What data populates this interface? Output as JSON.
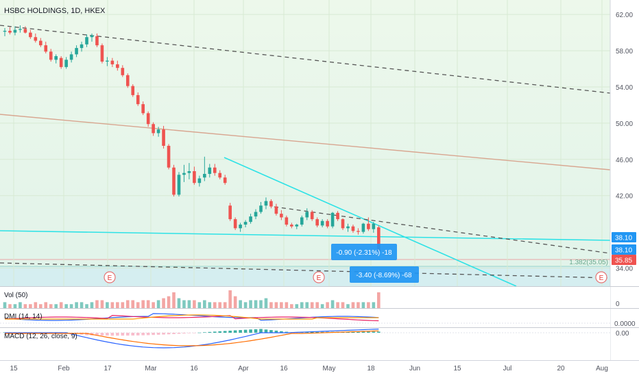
{
  "header": {
    "symbol": "HSBC HOLDINGS",
    "interval": "1D",
    "exchange": "HKEX"
  },
  "chart_data": {
    "type": "candlestick",
    "price_axis": {
      "ticks": [
        "62.00",
        "58.00",
        "54.00",
        "50.00",
        "46.00",
        "42.00",
        "34.00"
      ],
      "ylim": [
        32.0,
        63.6
      ]
    },
    "date_axis": {
      "labels": [
        "15",
        "Feb",
        "17",
        "Mar",
        "16",
        "Apr",
        "16",
        "May",
        "18",
        "Jun",
        "15",
        "Jul",
        "20",
        "Aug"
      ]
    },
    "price_tags": [
      {
        "text": "38.10",
        "value": 38.1,
        "color": "#2196f3"
      },
      {
        "text": "38.10",
        "value": 38.1,
        "color": "#2196f3"
      },
      {
        "text": "35.85",
        "value": 35.85,
        "color": "#ef5350"
      }
    ],
    "fib_label": "1.382(35.05)",
    "measurements": [
      {
        "text": "-0.90 (-2.31%) -18"
      },
      {
        "text": "-3.40 (-8.69%) -68"
      }
    ],
    "earnings_marker": "E",
    "candles": [
      [
        60.1,
        60.5,
        59.6,
        60.2
      ],
      [
        60.2,
        60.6,
        59.8,
        60.0
      ],
      [
        60.0,
        60.7,
        59.7,
        60.3
      ],
      [
        60.3,
        60.8,
        60.0,
        60.4
      ],
      [
        60.4,
        60.7,
        59.9,
        60.0
      ],
      [
        60.0,
        60.3,
        59.3,
        59.5
      ],
      [
        59.5,
        59.9,
        58.9,
        59.1
      ],
      [
        59.1,
        59.4,
        58.4,
        58.6
      ],
      [
        58.6,
        59.0,
        57.7,
        57.9
      ],
      [
        57.9,
        58.2,
        56.8,
        57.0
      ],
      [
        57.0,
        57.6,
        56.6,
        57.4
      ],
      [
        57.2,
        57.4,
        56.0,
        56.2
      ],
      [
        56.2,
        57.3,
        56.0,
        57.0
      ],
      [
        57.0,
        57.9,
        56.7,
        57.6
      ],
      [
        57.6,
        58.6,
        57.3,
        58.3
      ],
      [
        58.3,
        59.0,
        57.9,
        58.7
      ],
      [
        58.7,
        59.8,
        58.4,
        59.5
      ],
      [
        59.5,
        59.9,
        59.0,
        59.7
      ],
      [
        59.6,
        59.9,
        58.4,
        58.6
      ],
      [
        58.6,
        58.8,
        56.6,
        56.8
      ],
      [
        56.8,
        57.3,
        56.3,
        56.9
      ],
      [
        56.9,
        57.2,
        56.2,
        56.5
      ],
      [
        56.5,
        56.9,
        55.8,
        56.1
      ],
      [
        56.1,
        56.4,
        55.1,
        55.3
      ],
      [
        55.3,
        55.5,
        53.9,
        54.1
      ],
      [
        54.1,
        54.3,
        52.9,
        53.1
      ],
      [
        53.1,
        53.4,
        51.9,
        52.1
      ],
      [
        52.1,
        52.4,
        50.9,
        51.1
      ],
      [
        51.1,
        51.3,
        49.6,
        49.9
      ],
      [
        49.9,
        50.1,
        48.6,
        48.9
      ],
      [
        48.9,
        49.6,
        48.5,
        49.3
      ],
      [
        49.3,
        49.7,
        47.2,
        47.5
      ],
      [
        47.5,
        47.7,
        44.9,
        45.1
      ],
      [
        45.1,
        45.4,
        41.9,
        42.1
      ],
      [
        42.1,
        44.6,
        41.9,
        44.3
      ],
      [
        44.3,
        45.4,
        43.5,
        44.5
      ],
      [
        44.5,
        45.6,
        43.8,
        44.7
      ],
      [
        44.7,
        45.2,
        43.2,
        43.4
      ],
      [
        43.4,
        44.2,
        43.0,
        43.9
      ],
      [
        44.0,
        46.3,
        43.6,
        44.4
      ],
      [
        44.4,
        45.5,
        44.0,
        45.1
      ],
      [
        45.1,
        45.5,
        44.2,
        44.5
      ],
      [
        44.5,
        44.8,
        43.8,
        44.0
      ],
      [
        44.0,
        44.3,
        43.2,
        43.4
      ],
      [
        40.9,
        41.2,
        39.2,
        39.4
      ],
      [
        39.4,
        39.6,
        38.2,
        38.4
      ],
      [
        38.4,
        39.0,
        38.0,
        38.8
      ],
      [
        38.8,
        39.3,
        38.5,
        39.1
      ],
      [
        39.1,
        40.0,
        38.9,
        39.7
      ],
      [
        39.7,
        40.5,
        39.4,
        40.2
      ],
      [
        40.2,
        41.3,
        40.0,
        40.9
      ],
      [
        40.9,
        41.8,
        40.5,
        41.4
      ],
      [
        41.4,
        41.6,
        40.6,
        40.8
      ],
      [
        40.8,
        41.1,
        39.8,
        40.0
      ],
      [
        40.0,
        40.4,
        39.3,
        39.6
      ],
      [
        39.6,
        39.8,
        38.6,
        38.8
      ],
      [
        38.8,
        39.0,
        38.4,
        38.6
      ],
      [
        38.6,
        38.9,
        38.3,
        38.8
      ],
      [
        38.8,
        39.8,
        38.6,
        39.6
      ],
      [
        39.6,
        40.6,
        39.3,
        40.2
      ],
      [
        40.2,
        40.4,
        39.2,
        39.4
      ],
      [
        39.4,
        39.6,
        38.5,
        38.7
      ],
      [
        38.7,
        39.4,
        38.5,
        39.2
      ],
      [
        39.2,
        39.4,
        38.4,
        38.6
      ],
      [
        38.6,
        40.2,
        38.4,
        40.1
      ],
      [
        40.1,
        40.3,
        39.2,
        39.4
      ],
      [
        39.4,
        39.5,
        38.2,
        38.4
      ],
      [
        38.4,
        38.9,
        38.0,
        38.6
      ],
      [
        38.6,
        38.8,
        37.9,
        38.1
      ],
      [
        38.1,
        38.4,
        37.7,
        38.0
      ],
      [
        38.0,
        39.0,
        37.8,
        38.9
      ],
      [
        38.9,
        39.6,
        38.1,
        38.3
      ],
      [
        38.3,
        39.1,
        37.9,
        38.9
      ],
      [
        38.5,
        38.7,
        35.6,
        35.8
      ]
    ],
    "volume": [
      3,
      2,
      2,
      3,
      2,
      2,
      3,
      2,
      3,
      2,
      2,
      3,
      2,
      2,
      3,
      3,
      2,
      3,
      4,
      4,
      3,
      3,
      3,
      3,
      4,
      4,
      3,
      4,
      4,
      3,
      4,
      5,
      6,
      8,
      5,
      4,
      4,
      4,
      3,
      4,
      3,
      3,
      3,
      3,
      9,
      6,
      4,
      3,
      4,
      4,
      4,
      5,
      3,
      3,
      3,
      3,
      2,
      2,
      3,
      3,
      3,
      3,
      2,
      3,
      4,
      3,
      3,
      2,
      3,
      3,
      3,
      3,
      3,
      8
    ],
    "indicators": [
      {
        "label": "Vol (50)",
        "axis_tick": "0"
      },
      {
        "label": "DMI (14, 14)",
        "axis_tick": "0.0000"
      },
      {
        "label": "MACD (12, 26, close, 9)",
        "axis_tick": "0.00"
      }
    ]
  },
  "colors": {
    "up": "#26a69a",
    "down": "#ef5350",
    "cyan": "#2de2e6",
    "brown": "#d8a58f",
    "dashed": "#555555",
    "pane_top": "#ecf7ea",
    "pane_bottom": "#ddf2f0",
    "dmi_plus": "#2962ff",
    "dmi_minus": "#e91e63",
    "adx": "#ff9800",
    "macd": "#2962ff",
    "signal": "#ff6d00"
  }
}
